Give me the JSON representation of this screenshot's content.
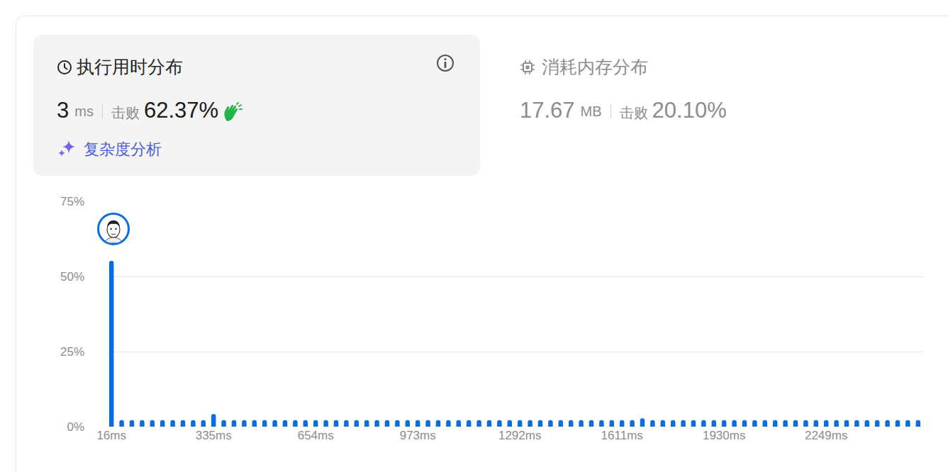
{
  "header": {
    "runtime": {
      "title": "执行用时分布",
      "value": "3",
      "unit": "ms",
      "beats_label": "击败",
      "beats": "62.37%",
      "analysis": "复杂度分析"
    },
    "memory": {
      "title": "消耗内存分布",
      "value": "17.67",
      "unit": "MB",
      "beats_label": "击败",
      "beats": "20.10%"
    }
  },
  "chart_data": {
    "type": "bar",
    "categories": [
      "16ms",
      null,
      null,
      null,
      null,
      null,
      null,
      null,
      null,
      null,
      "335ms",
      null,
      null,
      null,
      null,
      null,
      null,
      null,
      null,
      null,
      "654ms",
      null,
      null,
      null,
      null,
      null,
      null,
      null,
      null,
      null,
      "973ms",
      null,
      null,
      null,
      null,
      null,
      null,
      null,
      null,
      null,
      "1292ms",
      null,
      null,
      null,
      null,
      null,
      null,
      null,
      null,
      null,
      "1611ms",
      null,
      null,
      null,
      null,
      null,
      null,
      null,
      null,
      null,
      "1930ms",
      null,
      null,
      null,
      null,
      null,
      null,
      null,
      null,
      null,
      "2249ms",
      null,
      null,
      null,
      null,
      null,
      null,
      null,
      null,
      null
    ],
    "values": [
      55.2,
      2.2,
      2.2,
      2.2,
      2.2,
      2.2,
      2.2,
      2.2,
      2.2,
      2.2,
      4.2,
      2.2,
      2.2,
      2.2,
      2.2,
      2.2,
      2.2,
      2.2,
      2.2,
      2.2,
      2.2,
      2.2,
      2.2,
      2.2,
      2.2,
      2.2,
      2.2,
      2.2,
      2.2,
      2.2,
      2.2,
      2.2,
      2.2,
      2.2,
      2.2,
      2.2,
      2.2,
      2.2,
      2.2,
      2.2,
      2.2,
      2.2,
      2.2,
      2.2,
      2.2,
      2.2,
      2.2,
      2.2,
      2.2,
      2.2,
      2.2,
      2.2,
      2.8,
      2.2,
      2.2,
      2.2,
      2.2,
      2.2,
      2.2,
      2.2,
      2.2,
      2.2,
      2.2,
      2.2,
      2.2,
      2.2,
      2.2,
      2.2,
      2.2,
      2.2,
      2.2,
      2.2,
      2.2,
      2.2,
      2.2,
      2.2,
      2.2,
      2.2,
      2.2,
      2.2
    ],
    "color": "#0a6ddf",
    "ylim": [
      0,
      75
    ],
    "yticks": [
      {
        "value": 0,
        "label": "0%"
      },
      {
        "value": 25,
        "label": "25%"
      },
      {
        "value": 50,
        "label": "50%"
      },
      {
        "value": 75,
        "label": "75%"
      }
    ],
    "grid": true
  }
}
